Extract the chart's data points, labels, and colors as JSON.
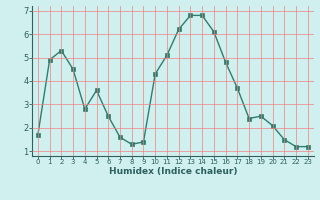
{
  "x": [
    0,
    1,
    2,
    3,
    4,
    5,
    6,
    7,
    8,
    9,
    10,
    11,
    12,
    13,
    14,
    15,
    16,
    17,
    18,
    19,
    20,
    21,
    22,
    23
  ],
  "y": [
    1.7,
    4.9,
    5.3,
    4.5,
    2.8,
    3.6,
    2.5,
    1.6,
    1.3,
    1.4,
    4.3,
    5.1,
    6.2,
    6.8,
    6.8,
    6.1,
    4.8,
    3.7,
    2.4,
    2.5,
    2.1,
    1.5,
    1.2,
    1.2
  ],
  "line_color": "#2e7d6e",
  "marker": "s",
  "marker_size": 2.5,
  "bg_color": "#cff0ef",
  "grid_color": "#f08080",
  "xlabel": "Humidex (Indice chaleur)",
  "xlim": [
    -0.5,
    23.5
  ],
  "ylim": [
    0.8,
    7.2
  ],
  "yticks": [
    1,
    2,
    3,
    4,
    5,
    6,
    7
  ],
  "xtick_labels": [
    "0",
    "1",
    "2",
    "3",
    "4",
    "5",
    "6",
    "7",
    "8",
    "9",
    "10",
    "11",
    "12",
    "13",
    "14",
    "15",
    "16",
    "17",
    "18",
    "19",
    "20",
    "21",
    "22",
    "23"
  ]
}
